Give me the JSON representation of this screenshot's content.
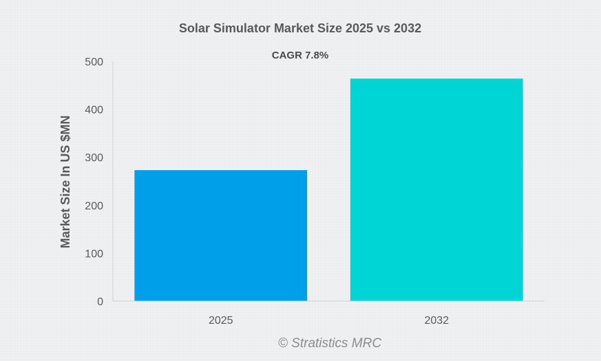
{
  "chart_data": {
    "type": "bar",
    "title": "Solar Simulator Market Size 2025 vs 2032",
    "subtitle": "CAGR 7.8%",
    "xlabel": "",
    "ylabel": "Market Size In US $MN",
    "categories": [
      "2025",
      "2032"
    ],
    "values": [
      273,
      464
    ],
    "bar_colors": [
      "#009fea",
      "#00d5d5"
    ],
    "ylim": [
      0,
      500
    ],
    "yticks": [
      0,
      100,
      200,
      300,
      400,
      500
    ],
    "ytick_labels": [
      "0",
      "100",
      "200",
      "300",
      "400",
      "500"
    ],
    "grid": false,
    "legend": "none"
  },
  "watermark": "© Stratistics MRC"
}
